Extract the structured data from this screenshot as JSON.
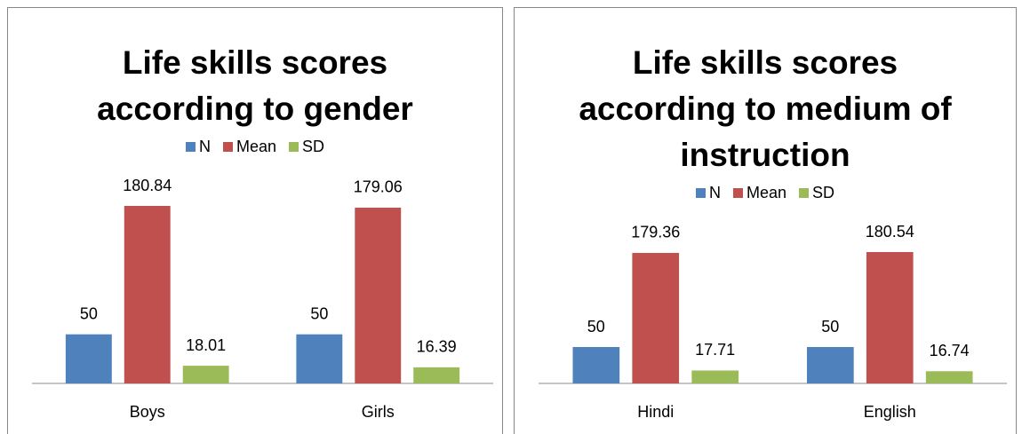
{
  "chart_data": [
    {
      "type": "bar",
      "title": "Life skills scores according to gender",
      "categories": [
        "Boys",
        "Girls"
      ],
      "series": [
        {
          "name": "N",
          "color": "#4f81bd",
          "values": [
            50,
            50
          ]
        },
        {
          "name": "Mean",
          "color": "#c0504d",
          "values": [
            180.84,
            179.06
          ]
        },
        {
          "name": "SD",
          "color": "#9bbb59",
          "values": [
            18.01,
            16.39
          ]
        }
      ]
    },
    {
      "type": "bar",
      "title": "Life skills scores according to medium of instruction",
      "categories": [
        "Hindi",
        "English"
      ],
      "series": [
        {
          "name": "N",
          "color": "#4f81bd",
          "values": [
            50,
            50
          ]
        },
        {
          "name": "Mean",
          "color": "#c0504d",
          "values": [
            179.36,
            180.54
          ]
        },
        {
          "name": "SD",
          "color": "#9bbb59",
          "values": [
            17.71,
            16.74
          ]
        }
      ]
    }
  ]
}
